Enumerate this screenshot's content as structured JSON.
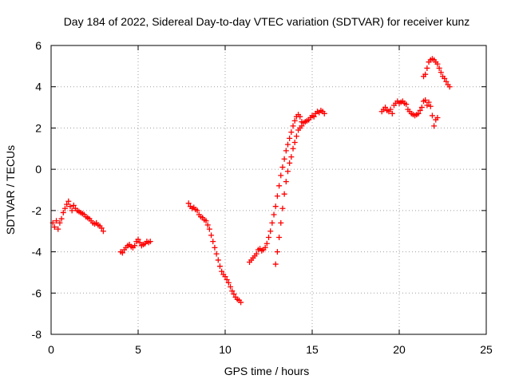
{
  "chart_data": {
    "type": "scatter",
    "title": "Day 184 of 2022, Sidereal Day-to-day VTEC variation (SDTVAR) for receiver kunz",
    "xlabel": "GPS time / hours",
    "ylabel": "SDTVAR / TECUs",
    "xlim": [
      0,
      25
    ],
    "ylim": [
      -8,
      6
    ],
    "xticks": [
      0,
      5,
      10,
      15,
      20,
      25
    ],
    "yticks": [
      -8,
      -6,
      -4,
      -2,
      0,
      2,
      4,
      6
    ],
    "grid": true,
    "marker": "plus",
    "color": "#ff0000",
    "series": [
      {
        "points": [
          [
            0.1,
            -2.6
          ],
          [
            0.2,
            -2.8
          ],
          [
            0.3,
            -2.5
          ],
          [
            0.4,
            -2.9
          ],
          [
            0.5,
            -2.6
          ],
          [
            0.6,
            -2.4
          ],
          [
            0.7,
            -2.1
          ],
          [
            0.8,
            -1.9
          ],
          [
            0.9,
            -1.7
          ],
          [
            1.0,
            -1.55
          ],
          [
            1.1,
            -1.8
          ],
          [
            1.2,
            -2.0
          ],
          [
            1.3,
            -1.75
          ],
          [
            1.4,
            -1.9
          ],
          [
            1.5,
            -2.0
          ],
          [
            1.6,
            -2.05
          ],
          [
            1.7,
            -2.1
          ],
          [
            1.8,
            -2.15
          ],
          [
            1.9,
            -2.2
          ],
          [
            2.0,
            -2.3
          ],
          [
            2.1,
            -2.35
          ],
          [
            2.2,
            -2.4
          ],
          [
            2.3,
            -2.5
          ],
          [
            2.4,
            -2.6
          ],
          [
            2.5,
            -2.65
          ],
          [
            2.6,
            -2.6
          ],
          [
            2.7,
            -2.7
          ],
          [
            2.8,
            -2.75
          ],
          [
            2.9,
            -2.85
          ],
          [
            3.0,
            -3.0
          ],
          [
            4.0,
            -4.0
          ],
          [
            4.1,
            -4.05
          ],
          [
            4.2,
            -3.9
          ],
          [
            4.3,
            -3.8
          ],
          [
            4.4,
            -3.7
          ],
          [
            4.5,
            -3.65
          ],
          [
            4.6,
            -3.75
          ],
          [
            4.7,
            -3.8
          ],
          [
            4.8,
            -3.7
          ],
          [
            4.9,
            -3.5
          ],
          [
            5.0,
            -3.4
          ],
          [
            5.1,
            -3.55
          ],
          [
            5.2,
            -3.7
          ],
          [
            5.3,
            -3.65
          ],
          [
            5.4,
            -3.6
          ],
          [
            5.5,
            -3.5
          ],
          [
            5.6,
            -3.55
          ],
          [
            5.7,
            -3.5
          ],
          [
            7.9,
            -1.65
          ],
          [
            8.0,
            -1.8
          ],
          [
            8.1,
            -1.9
          ],
          [
            8.2,
            -1.85
          ],
          [
            8.3,
            -1.95
          ],
          [
            8.4,
            -2.0
          ],
          [
            8.5,
            -2.2
          ],
          [
            8.6,
            -2.3
          ],
          [
            8.7,
            -2.35
          ],
          [
            8.8,
            -2.45
          ],
          [
            8.9,
            -2.5
          ],
          [
            9.0,
            -2.7
          ],
          [
            9.1,
            -2.9
          ],
          [
            9.2,
            -3.2
          ],
          [
            9.3,
            -3.5
          ],
          [
            9.4,
            -3.8
          ],
          [
            9.5,
            -4.1
          ],
          [
            9.6,
            -4.4
          ],
          [
            9.7,
            -4.7
          ],
          [
            9.8,
            -4.95
          ],
          [
            9.9,
            -5.1
          ],
          [
            10.0,
            -5.2
          ],
          [
            10.1,
            -5.35
          ],
          [
            10.2,
            -5.5
          ],
          [
            10.3,
            -5.7
          ],
          [
            10.4,
            -5.9
          ],
          [
            10.5,
            -6.05
          ],
          [
            10.6,
            -6.2
          ],
          [
            10.7,
            -6.3
          ],
          [
            10.8,
            -6.35
          ],
          [
            10.9,
            -6.45
          ],
          [
            11.4,
            -4.5
          ],
          [
            11.5,
            -4.4
          ],
          [
            11.6,
            -4.3
          ],
          [
            11.7,
            -4.2
          ],
          [
            11.8,
            -4.1
          ],
          [
            11.9,
            -3.9
          ],
          [
            12.0,
            -3.85
          ],
          [
            12.1,
            -3.95
          ],
          [
            12.2,
            -3.9
          ],
          [
            12.3,
            -3.8
          ],
          [
            12.4,
            -3.6
          ],
          [
            12.5,
            -3.3
          ],
          [
            12.6,
            -3.0
          ],
          [
            12.7,
            -2.6
          ],
          [
            12.8,
            -2.2
          ],
          [
            12.9,
            -1.8
          ],
          [
            13.0,
            -1.3
          ],
          [
            13.1,
            -0.8
          ],
          [
            13.2,
            -0.3
          ],
          [
            13.3,
            0.1
          ],
          [
            13.4,
            0.5
          ],
          [
            13.5,
            0.9
          ],
          [
            13.6,
            1.2
          ],
          [
            13.7,
            1.5
          ],
          [
            13.8,
            1.8
          ],
          [
            13.9,
            2.1
          ],
          [
            14.0,
            2.35
          ],
          [
            14.1,
            2.55
          ],
          [
            14.2,
            2.65
          ],
          [
            14.3,
            2.55
          ],
          [
            14.4,
            2.3
          ],
          [
            12.9,
            -4.6
          ],
          [
            13.0,
            -4.0
          ],
          [
            13.1,
            -3.3
          ],
          [
            13.2,
            -2.6
          ],
          [
            13.3,
            -1.9
          ],
          [
            13.4,
            -1.2
          ],
          [
            13.5,
            -0.6
          ],
          [
            13.6,
            -0.1
          ],
          [
            13.7,
            0.3
          ],
          [
            13.8,
            0.6
          ],
          [
            13.9,
            1.0
          ],
          [
            14.0,
            1.3
          ],
          [
            14.1,
            1.6
          ],
          [
            14.2,
            1.9
          ],
          [
            14.3,
            2.0
          ],
          [
            14.4,
            2.1
          ],
          [
            14.5,
            2.25
          ],
          [
            14.6,
            2.3
          ],
          [
            14.7,
            2.35
          ],
          [
            14.8,
            2.4
          ],
          [
            14.9,
            2.5
          ],
          [
            15.0,
            2.6
          ],
          [
            15.1,
            2.55
          ],
          [
            15.2,
            2.7
          ],
          [
            15.3,
            2.8
          ],
          [
            15.4,
            2.75
          ],
          [
            15.5,
            2.85
          ],
          [
            15.6,
            2.8
          ],
          [
            15.7,
            2.7
          ],
          [
            19.0,
            2.8
          ],
          [
            19.1,
            2.9
          ],
          [
            19.2,
            3.0
          ],
          [
            19.3,
            2.85
          ],
          [
            19.4,
            2.8
          ],
          [
            19.5,
            2.9
          ],
          [
            19.6,
            2.7
          ],
          [
            19.7,
            3.1
          ],
          [
            19.8,
            3.2
          ],
          [
            19.9,
            3.3
          ],
          [
            20.0,
            3.2
          ],
          [
            20.1,
            3.25
          ],
          [
            20.2,
            3.3
          ],
          [
            20.3,
            3.2
          ],
          [
            20.4,
            3.15
          ],
          [
            20.5,
            2.9
          ],
          [
            20.6,
            2.8
          ],
          [
            20.7,
            2.7
          ],
          [
            20.8,
            2.65
          ],
          [
            20.9,
            2.6
          ],
          [
            21.0,
            2.65
          ],
          [
            21.1,
            2.7
          ],
          [
            21.2,
            2.85
          ],
          [
            21.3,
            3.0
          ],
          [
            21.4,
            3.3
          ],
          [
            21.5,
            3.35
          ],
          [
            21.6,
            3.1
          ],
          [
            21.7,
            3.25
          ],
          [
            21.8,
            3.05
          ],
          [
            21.9,
            2.6
          ],
          [
            22.0,
            2.1
          ],
          [
            22.1,
            2.4
          ],
          [
            22.2,
            2.5
          ],
          [
            21.4,
            4.5
          ],
          [
            21.5,
            4.6
          ],
          [
            21.6,
            4.9
          ],
          [
            21.7,
            5.2
          ],
          [
            21.8,
            5.3
          ],
          [
            21.9,
            5.35
          ],
          [
            22.0,
            5.3
          ],
          [
            22.1,
            5.2
          ],
          [
            22.2,
            5.1
          ],
          [
            22.3,
            4.9
          ],
          [
            22.4,
            4.7
          ],
          [
            22.5,
            4.5
          ],
          [
            22.6,
            4.4
          ],
          [
            22.7,
            4.25
          ],
          [
            22.8,
            4.1
          ],
          [
            22.9,
            4.0
          ]
        ]
      }
    ]
  }
}
